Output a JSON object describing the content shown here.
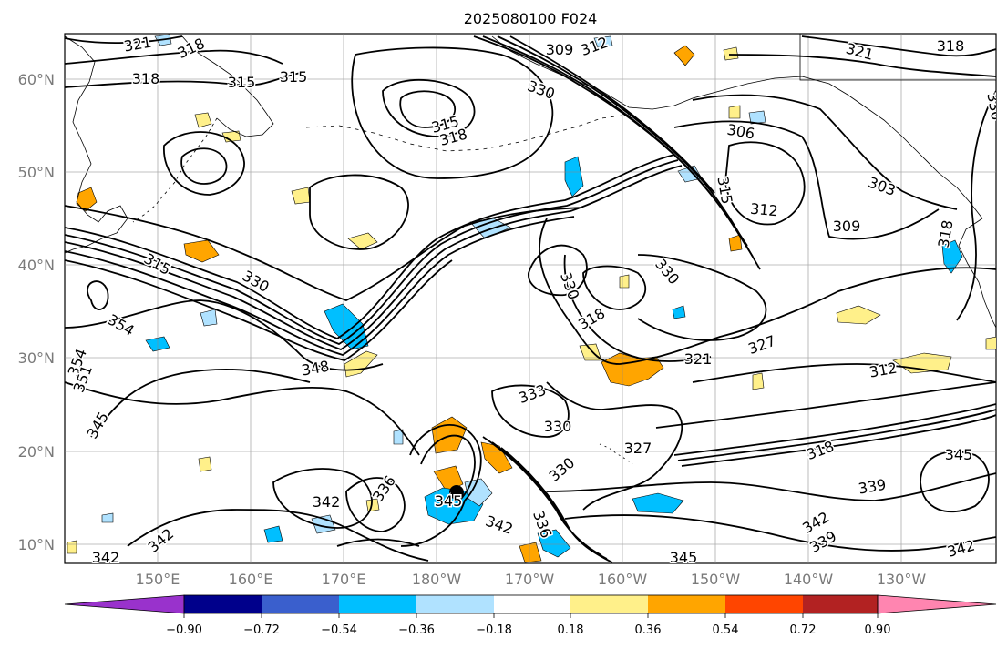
{
  "title": "2025080100 F024",
  "lat_labels": [
    "60°N",
    "50°N",
    "40°N",
    "30°N",
    "20°N",
    "10°N"
  ],
  "lon_labels": [
    "150°E",
    "160°E",
    "170°E",
    "180°W",
    "170°W",
    "160°W",
    "150°W",
    "140°W",
    "130°W"
  ],
  "colorbar": {
    "ticks": [
      "−0.90",
      "−0.72",
      "−0.54",
      "−0.36",
      "−0.18",
      "0.18",
      "0.36",
      "0.54",
      "0.72",
      "0.90"
    ],
    "colors": [
      "#9932cc",
      "#00008b",
      "#3a5fcd",
      "#00bfff",
      "#b0e2ff",
      "#ffffff",
      "#fff08a",
      "#ffa500",
      "#ff4500",
      "#b22222",
      "#ff85b0"
    ]
  },
  "contour_labels": [
    "321",
    "318",
    "318",
    "315",
    "315",
    "309",
    "312",
    "330",
    "315",
    "318",
    "306",
    "321",
    "318",
    "330",
    "303",
    "315",
    "312",
    "309",
    "318",
    "330",
    "330",
    "315",
    "330",
    "354",
    "354",
    "351",
    "345",
    "348",
    "318",
    "321",
    "327",
    "312",
    "333",
    "330",
    "327",
    "318",
    "336",
    "345",
    "342",
    "342",
    "342",
    "339",
    "330",
    "336",
    "342",
    "339",
    "342",
    "345",
    "342",
    "345"
  ],
  "styles": {
    "shading_colors": [
      "#fff08a",
      "#ffa500",
      "#b0e2ff",
      "#00bfff"
    ]
  }
}
